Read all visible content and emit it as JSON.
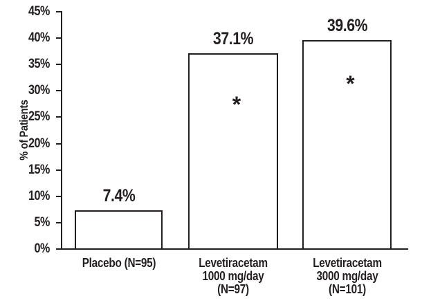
{
  "chart_data": {
    "type": "bar",
    "title": "",
    "xlabel": "",
    "ylabel": "% of Patients",
    "ylim": [
      0,
      45
    ],
    "ytick_step": 5,
    "ytick_labels": [
      "0%",
      "5%",
      "10%",
      "15%",
      "20%",
      "25%",
      "30%",
      "35%",
      "40%",
      "45%"
    ],
    "grid": false,
    "legend": false,
    "categories": [
      [
        "Placebo (N=95)"
      ],
      [
        "Levetiracetam",
        "1000 mg/day",
        "(N=97)"
      ],
      [
        "Levetiracetam",
        "3000 mg/day",
        "(N=101)"
      ]
    ],
    "values": [
      7.4,
      37.1,
      39.6
    ],
    "value_labels": [
      "7.4%",
      "37.1%",
      "39.6%"
    ],
    "significance_markers": [
      false,
      true,
      true
    ],
    "significance_symbol": "*",
    "colors": {
      "background": "#ffffff",
      "bar_fill": "#ffffff",
      "bar_border": "#231f20",
      "text": "#231f20"
    }
  }
}
